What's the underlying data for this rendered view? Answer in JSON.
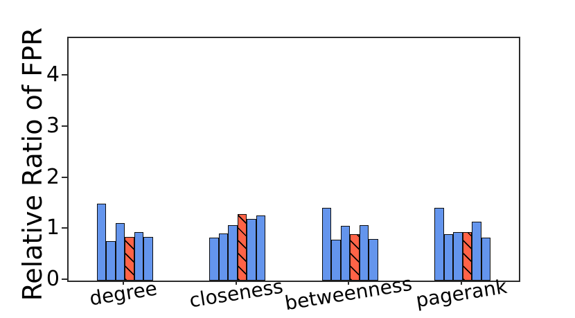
{
  "chart_data": {
    "type": "bar",
    "title": "",
    "xlabel": "",
    "ylabel": "Relative Ratio of FPR",
    "categories": [
      "degree",
      "closeness",
      "betweenness",
      "pagerank"
    ],
    "series": [
      {
        "color": "#6495ED",
        "hatch": "none",
        "values": [
          1.5,
          0.84,
          1.42,
          1.43
        ]
      },
      {
        "color": "#6495ED",
        "hatch": "none",
        "values": [
          0.77,
          0.92,
          0.8,
          0.91
        ]
      },
      {
        "color": "#6495ED",
        "hatch": "none",
        "values": [
          1.12,
          1.09,
          1.07,
          0.95
        ]
      },
      {
        "color": "#FF6347",
        "hatch": "\\",
        "values": [
          0.85,
          1.3,
          0.91,
          0.95
        ]
      },
      {
        "color": "#6495ED",
        "hatch": "none",
        "values": [
          0.95,
          1.21,
          1.08,
          1.16
        ]
      },
      {
        "color": "#6495ED",
        "hatch": "none",
        "values": [
          0.86,
          1.27,
          0.82,
          0.84
        ]
      }
    ],
    "yticks": [
      "0",
      "1",
      "2",
      "3",
      "4"
    ],
    "ylim": [
      0,
      4.75
    ],
    "grid": false,
    "legend": "none",
    "bar_edge_color": "#0d0d0d",
    "hatch_color": "#000000"
  }
}
